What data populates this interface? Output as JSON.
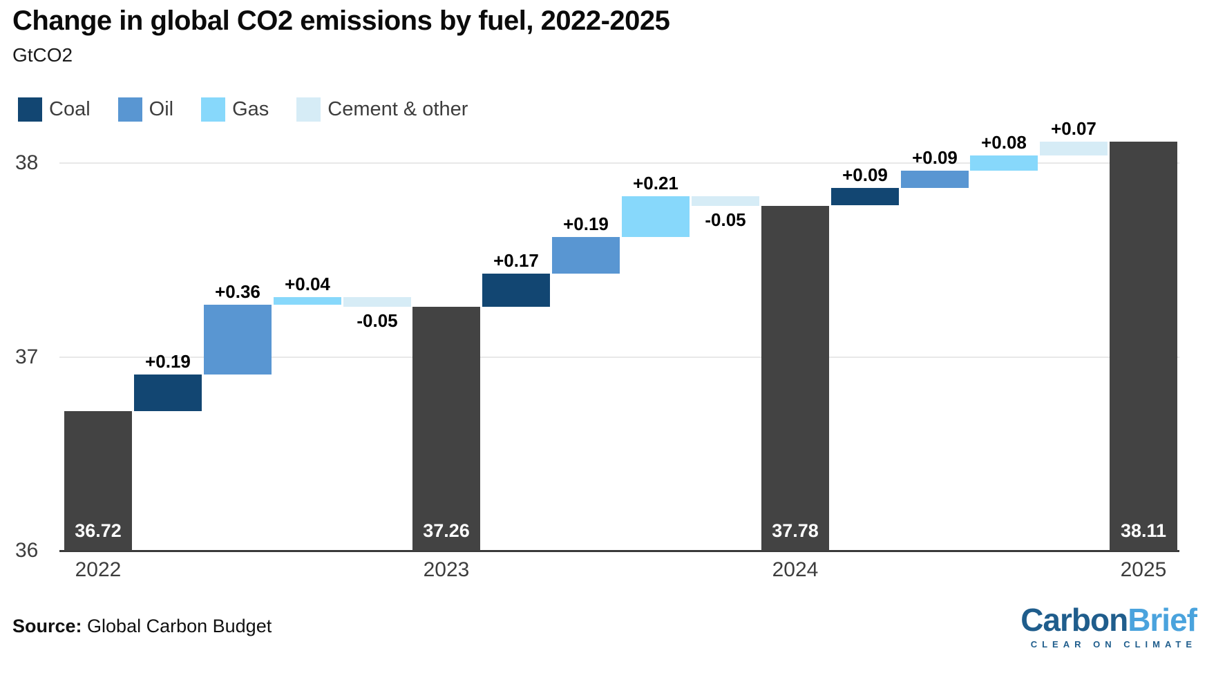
{
  "header": {
    "title": "Change in global CO2 emissions by fuel, 2022-2025",
    "subtitle": "GtCO2"
  },
  "colors": {
    "coal": "#124672",
    "oil": "#5996d2",
    "gas": "#87d8fb",
    "cement_other": "#d6ecf6",
    "total_bar": "#434343",
    "gridline": "#e8e8e8",
    "axis_line": "#3a3a3a",
    "tick_text": "#3d3d3d",
    "value_label": "#000000",
    "bar_inner_label": "#ffffff",
    "logo_dark_blue": "#1f5d8c",
    "logo_light_blue": "#4aa3dd"
  },
  "legend": [
    {
      "label": "Coal",
      "color_key": "coal"
    },
    {
      "label": "Oil",
      "color_key": "oil"
    },
    {
      "label": "Gas",
      "color_key": "gas"
    },
    {
      "label": "Cement & other",
      "color_key": "cement_other"
    }
  ],
  "chart_data": {
    "type": "waterfall",
    "title": "Change in global CO2 emissions by fuel, 2022-2025",
    "unit": "GtCO2",
    "ylim": [
      36,
      38.2
    ],
    "yticks": [
      "36",
      "37",
      "38"
    ],
    "ytick_values": [
      36,
      37,
      38
    ],
    "x_year_labels": [
      "2022",
      "2023",
      "2024",
      "2025"
    ],
    "grid": "horizontal-only",
    "legend_position": "top-left",
    "totals": [
      {
        "year": "2022",
        "value": 36.72
      },
      {
        "year": "2023",
        "value": 37.26
      },
      {
        "year": "2024",
        "value": 37.78
      },
      {
        "year": "2025",
        "value": 38.11
      }
    ],
    "bars": [
      {
        "type": "total",
        "label": "2022",
        "value": 36.72,
        "value_label": "36.72"
      },
      {
        "type": "delta",
        "series": "Coal",
        "color_key": "coal",
        "value": 0.19,
        "label": "+0.19"
      },
      {
        "type": "delta",
        "series": "Oil",
        "color_key": "oil",
        "value": 0.36,
        "label": "+0.36"
      },
      {
        "type": "delta",
        "series": "Gas",
        "color_key": "gas",
        "value": 0.04,
        "label": "+0.04"
      },
      {
        "type": "delta",
        "series": "Cement & other",
        "color_key": "cement_other",
        "value": -0.05,
        "label": "-0.05"
      },
      {
        "type": "total",
        "label": "2023",
        "value": 37.26,
        "value_label": "37.26"
      },
      {
        "type": "delta",
        "series": "Coal",
        "color_key": "coal",
        "value": 0.17,
        "label": "+0.17"
      },
      {
        "type": "delta",
        "series": "Oil",
        "color_key": "oil",
        "value": 0.19,
        "label": "+0.19"
      },
      {
        "type": "delta",
        "series": "Gas",
        "color_key": "gas",
        "value": 0.21,
        "label": "+0.21"
      },
      {
        "type": "delta",
        "series": "Cement & other",
        "color_key": "cement_other",
        "value": -0.05,
        "label": "-0.05"
      },
      {
        "type": "total",
        "label": "2024",
        "value": 37.78,
        "value_label": "37.78"
      },
      {
        "type": "delta",
        "series": "Coal",
        "color_key": "coal",
        "value": 0.09,
        "label": "+0.09"
      },
      {
        "type": "delta",
        "series": "Oil",
        "color_key": "oil",
        "value": 0.09,
        "label": "+0.09"
      },
      {
        "type": "delta",
        "series": "Gas",
        "color_key": "gas",
        "value": 0.08,
        "label": "+0.08"
      },
      {
        "type": "delta",
        "series": "Cement & other",
        "color_key": "cement_other",
        "value": 0.07,
        "label": "+0.07"
      },
      {
        "type": "total",
        "label": "2025",
        "value": 38.11,
        "value_label": "38.11"
      }
    ]
  },
  "source": {
    "prefix": "Source:",
    "text": " Global Carbon Budget"
  },
  "logo": {
    "part1": "Carbon",
    "part2": "Brief",
    "tagline": "CLEAR ON CLIMATE"
  }
}
